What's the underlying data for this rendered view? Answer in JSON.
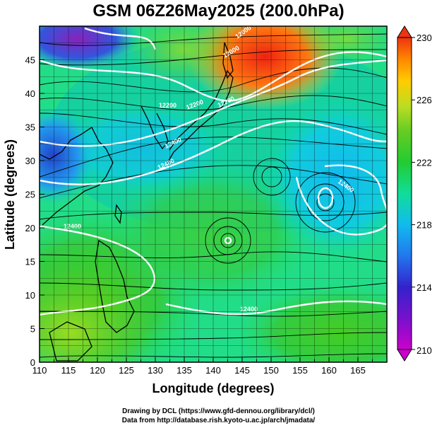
{
  "title": "GSM 06Z26May2025 (200.0hPa)",
  "chart_data": {
    "type": "map",
    "xlabel": "Longitude (degrees)",
    "ylabel": "Latitude  (degrees)",
    "xlim": [
      110,
      170
    ],
    "ylim": [
      0,
      50
    ],
    "x_ticks": [
      "110",
      "115",
      "120",
      "125",
      "130",
      "135",
      "140",
      "145",
      "150",
      "155",
      "160",
      "165"
    ],
    "y_ticks": [
      "0",
      "5",
      "10",
      "15",
      "20",
      "25",
      "30",
      "35",
      "40",
      "45"
    ],
    "colorbar": {
      "ticks": [
        "230",
        "226",
        "222",
        "218",
        "214",
        "210"
      ],
      "range": [
        210,
        230
      ],
      "colors": [
        "#cc00cc",
        "#3322cc",
        "#2277ee",
        "#11bbee",
        "#11dd99",
        "#22cc33",
        "#66cc22",
        "#bbdd22",
        "#ffcc00",
        "#ff8800",
        "#ee3311"
      ]
    },
    "contour_labels": [
      "12000",
      "12000",
      "12200",
      "12200",
      "12200",
      "12400",
      "12400",
      "12400",
      "12400",
      "12400"
    ]
  },
  "footer": {
    "line1": "Drawing by DCL (https://www.gfd-dennou.org/library/dcl/)",
    "line2": "Data from http://database.rish.kyoto-u.ac.jp/arch/jmadata/"
  }
}
